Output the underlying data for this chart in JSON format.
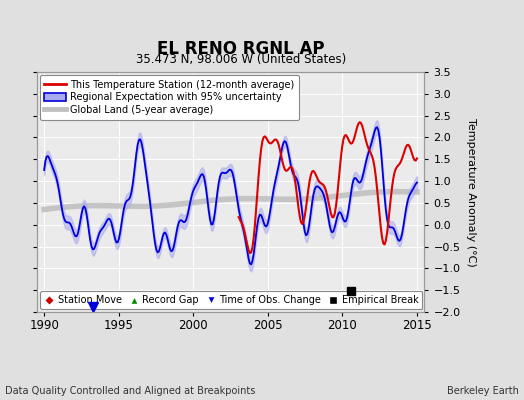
{
  "title": "EL RENO RGNL AP",
  "subtitle": "35.473 N, 98.006 W (United States)",
  "ylabel": "Temperature Anomaly (°C)",
  "xlabel_note": "Data Quality Controlled and Aligned at Breakpoints",
  "credit": "Berkeley Earth",
  "ylim": [
    -2.0,
    3.5
  ],
  "yticks": [
    -2,
    -1.5,
    -1,
    -0.5,
    0,
    0.5,
    1,
    1.5,
    2,
    2.5,
    3,
    3.5
  ],
  "xlim": [
    1989.5,
    2015.5
  ],
  "xticks": [
    1990,
    1995,
    2000,
    2005,
    2010,
    2015
  ],
  "bg_color": "#e0e0e0",
  "plot_bg_color": "#ebebeb",
  "grid_color": "#ffffff",
  "uncertainty_color": "#aaaaee",
  "regional_line_color": "#0000dd",
  "station_line_color": "#dd0000",
  "global_line_color": "#c0c0c0",
  "empirical_break_x": 2010.6,
  "empirical_break_y": -1.52,
  "time_obs_change_x": 1993.3,
  "time_obs_change_y": -1.88
}
